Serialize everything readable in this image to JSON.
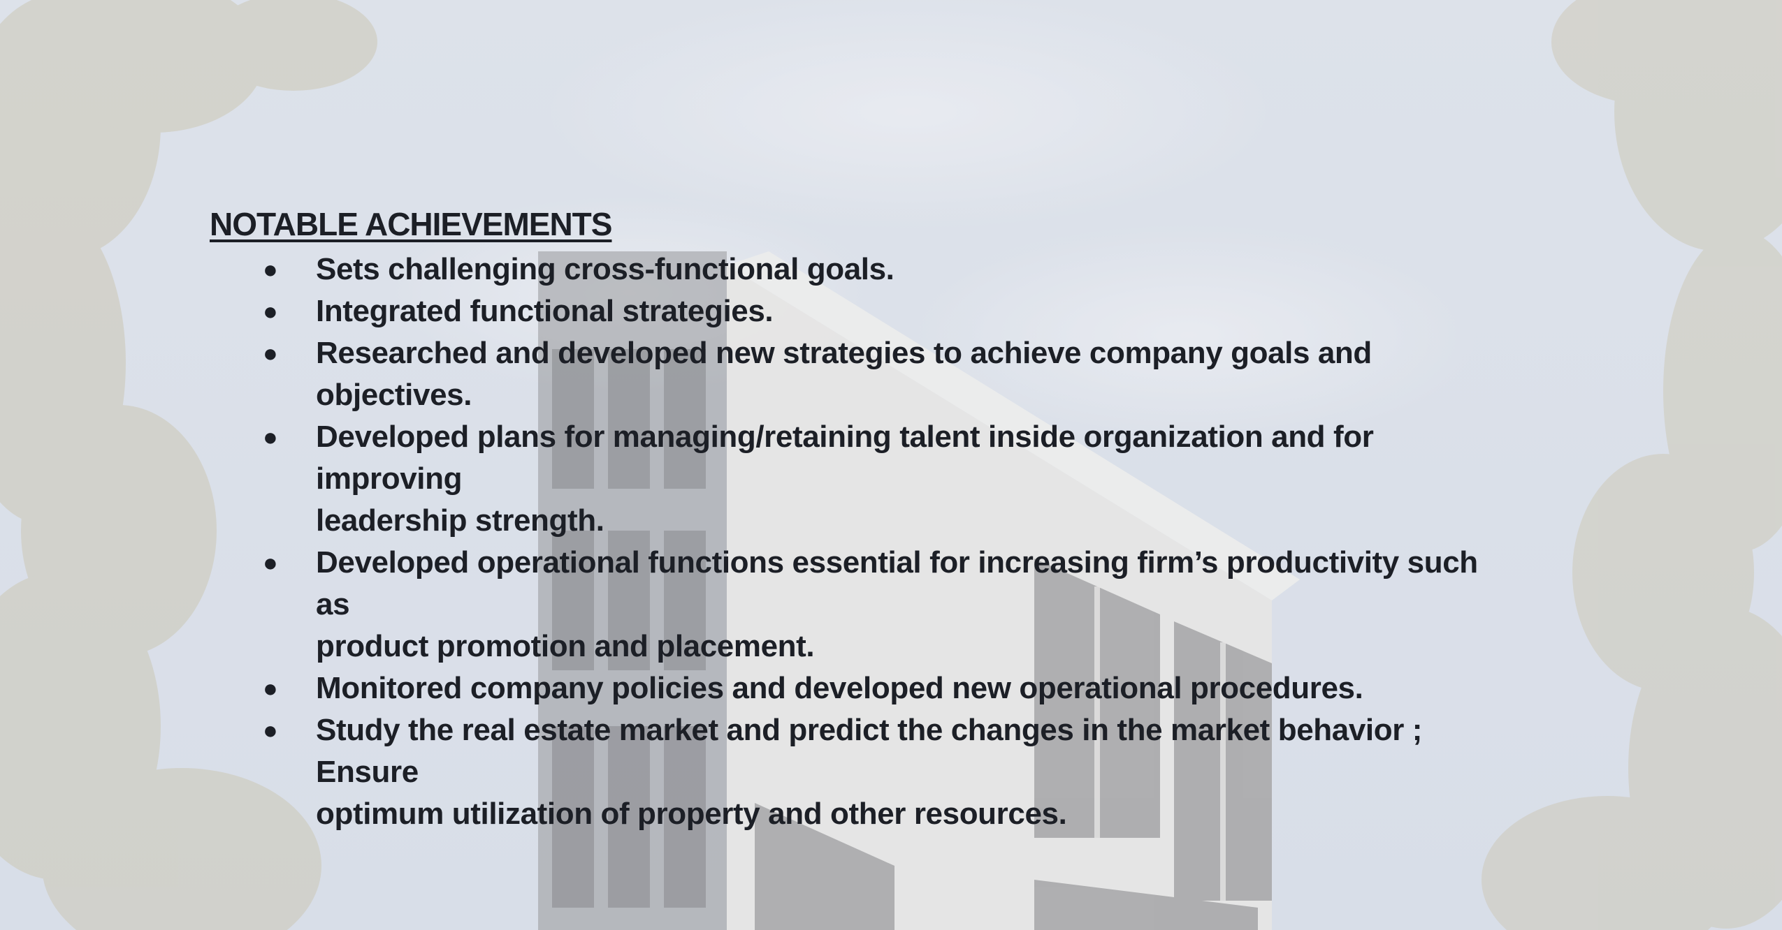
{
  "heading": "NOTABLE ACHIEVEMENTS",
  "bullet_glyph": "●",
  "items": [
    {
      "lines": [
        "Sets challenging cross-functional goals."
      ]
    },
    {
      "lines": [
        "Integrated functional strategies."
      ]
    },
    {
      "lines": [
        "Researched and developed new strategies to achieve company goals and",
        "objectives."
      ]
    },
    {
      "lines": [
        "Developed plans for managing/retaining talent inside organization and for",
        "improving",
        "leadership strength."
      ]
    },
    {
      "lines": [
        "Developed operational functions essential for increasing firm’s productivity such",
        "as",
        "product promotion and placement."
      ]
    },
    {
      "lines": [
        "Monitored company policies and developed new operational procedures."
      ]
    },
    {
      "lines": [
        "Study the real estate market and predict the changes in the market behavior ;",
        "Ensure",
        "optimum utilization of property and other resources."
      ]
    }
  ],
  "colors": {
    "text": "#1c1f26",
    "sky": "#d6dde8",
    "building": "#e9e6e0",
    "window": "#4a4a4c",
    "foliage": "#b8ae88"
  }
}
